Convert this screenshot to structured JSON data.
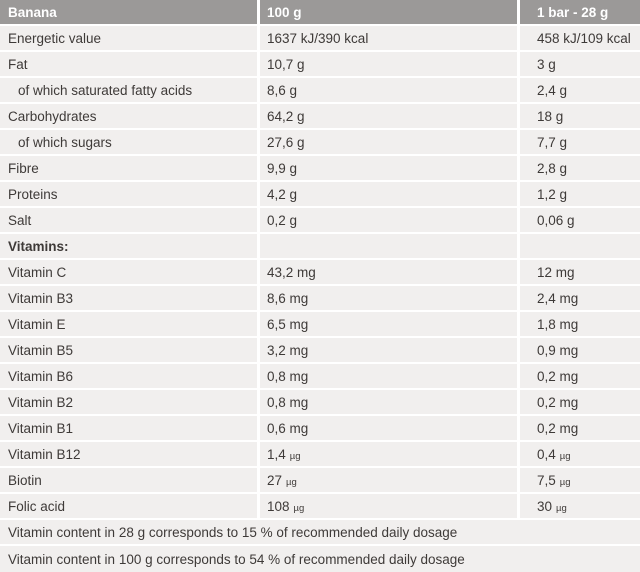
{
  "header": {
    "product": "Banana",
    "col_100g": "100 g",
    "col_bar": "1 bar - 28 g"
  },
  "rows": [
    {
      "label": "Energetic value",
      "c2": {
        "v": "1637 kJ/390 kcal",
        "u": ""
      },
      "c3": {
        "v": "458 kJ/109 kcal",
        "u": ""
      }
    },
    {
      "label": "Fat",
      "c2": {
        "v": "10,7 g",
        "u": ""
      },
      "c3": {
        "v": "3 g",
        "u": ""
      }
    },
    {
      "label": "of which saturated fatty acids",
      "c2": {
        "v": "8,6 g",
        "u": ""
      },
      "c3": {
        "v": "2,4 g",
        "u": ""
      }
    },
    {
      "label": "Carbohydrates",
      "c2": {
        "v": "64,2 g",
        "u": ""
      },
      "c3": {
        "v": "18 g",
        "u": ""
      }
    },
    {
      "label": "of which sugars",
      "c2": {
        "v": "27,6 g",
        "u": ""
      },
      "c3": {
        "v": "7,7 g",
        "u": ""
      }
    },
    {
      "label": "Fibre",
      "c2": {
        "v": "9,9 g",
        "u": ""
      },
      "c3": {
        "v": "2,8 g",
        "u": ""
      }
    },
    {
      "label": "Proteins",
      "c2": {
        "v": "4,2 g",
        "u": ""
      },
      "c3": {
        "v": "1,2 g",
        "u": ""
      }
    },
    {
      "label": "Salt",
      "c2": {
        "v": "0,2 g",
        "u": ""
      },
      "c3": {
        "v": "0,06 g",
        "u": ""
      }
    },
    {
      "label": "Vitamins:",
      "c2": {
        "v": "",
        "u": ""
      },
      "c3": {
        "v": "",
        "u": ""
      }
    },
    {
      "label": "Vitamin C",
      "c2": {
        "v": "43,2 mg",
        "u": ""
      },
      "c3": {
        "v": "12 mg",
        "u": ""
      }
    },
    {
      "label": "Vitamin B3",
      "c2": {
        "v": "8,6 mg",
        "u": ""
      },
      "c3": {
        "v": "2,4 mg",
        "u": ""
      }
    },
    {
      "label": "Vitamin E",
      "c2": {
        "v": "6,5 mg",
        "u": ""
      },
      "c3": {
        "v": "1,8 mg",
        "u": ""
      }
    },
    {
      "label": "Vitamin B5",
      "c2": {
        "v": "3,2 mg",
        "u": ""
      },
      "c3": {
        "v": "0,9 mg",
        "u": ""
      }
    },
    {
      "label": "Vitamin B6",
      "c2": {
        "v": "0,8 mg",
        "u": ""
      },
      "c3": {
        "v": "0,2 mg",
        "u": ""
      }
    },
    {
      "label": "Vitamin B2",
      "c2": {
        "v": "0,8 mg",
        "u": ""
      },
      "c3": {
        "v": "0,2 mg",
        "u": ""
      }
    },
    {
      "label": "Vitamin B1",
      "c2": {
        "v": "0,6 mg",
        "u": ""
      },
      "c3": {
        "v": "0,2 mg",
        "u": ""
      }
    },
    {
      "label": "Vitamin B12",
      "c2": {
        "v": "1,4",
        "u": "µg"
      },
      "c3": {
        "v": "0,4",
        "u": "µg"
      }
    },
    {
      "label": "Biotin",
      "c2": {
        "v": "27",
        "u": "µg"
      },
      "c3": {
        "v": "7,5",
        "u": "µg"
      }
    },
    {
      "label": "Folic acid",
      "c2": {
        "v": "108",
        "u": "µg"
      },
      "c3": {
        "v": "30",
        "u": "µg"
      }
    }
  ],
  "footnotes": [
    {
      "text": "Vitamin content in 28 g corresponds to 15 % of recommended daily dosage"
    },
    {
      "text": "Vitamin content in 100 g corresponds to 54 % of recommended daily dosage"
    }
  ],
  "colors": {
    "header_bg": "#9b9998",
    "header_text": "#ffffff",
    "row_bg": "#f1efee",
    "separator": "#ffffff",
    "text": "#3e3a38"
  }
}
